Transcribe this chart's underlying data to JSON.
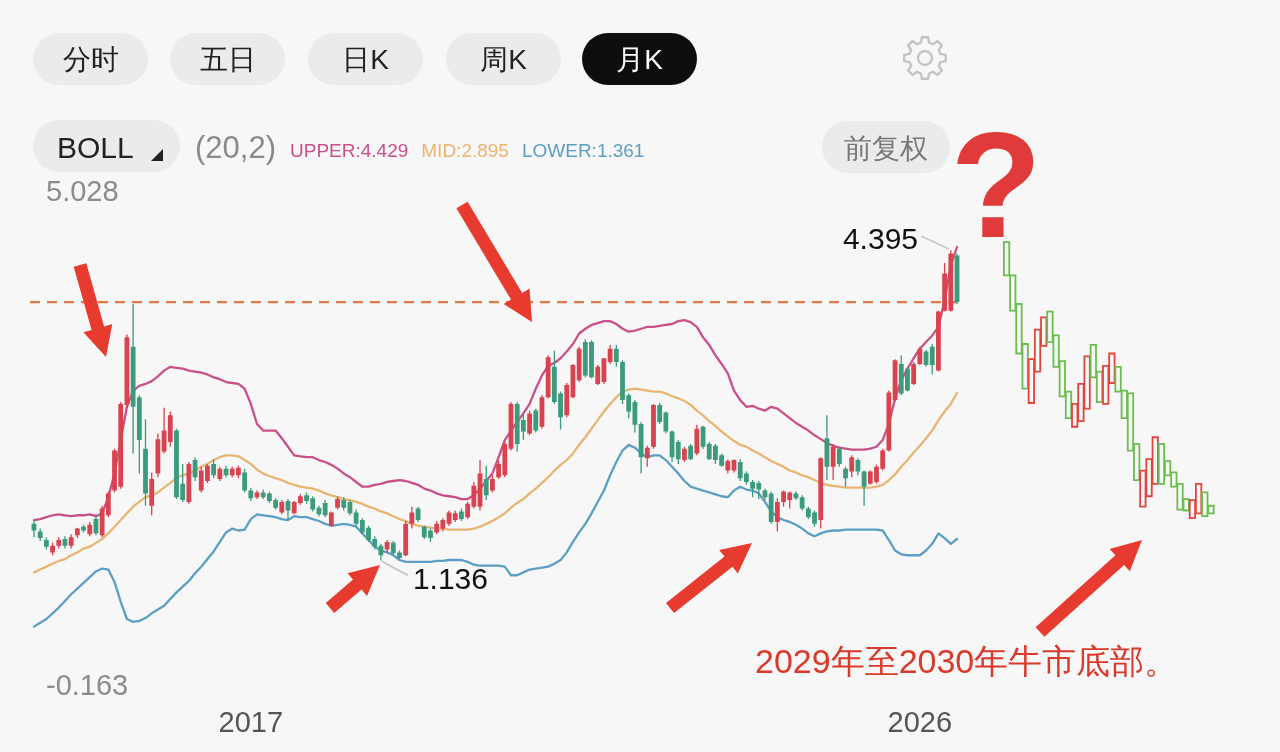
{
  "chart_data": {
    "type": "candlestick",
    "legend_title": "(20,2)",
    "legend": "top left",
    "annotations": [
      "分时",
      "五日",
      "日K",
      "周K",
      "月K",
      "BOLL",
      "前复权",
      "?",
      "2029年至2030年牛市底部。",
      "4.395",
      {
        "text": "1.136",
        "y": 1.136
      }
    ],
    "categories": [
      null,
      null,
      null,
      null,
      null,
      null,
      null,
      null,
      null,
      null,
      null,
      null,
      null,
      null,
      null,
      null,
      null,
      null,
      null,
      null,
      null,
      null,
      null,
      null,
      null,
      null,
      null,
      null,
      null,
      null,
      null,
      null,
      null,
      null,
      null,
      "2017",
      null,
      null,
      null,
      null,
      null,
      null,
      null,
      null,
      null,
      null,
      null,
      null,
      null,
      null,
      null,
      null,
      null,
      null,
      null,
      null,
      null,
      null,
      null,
      null,
      null,
      null,
      null,
      null,
      null,
      null,
      null,
      null,
      null,
      null,
      null,
      null,
      null,
      null,
      null,
      null,
      null,
      null,
      null,
      null,
      null,
      null,
      null,
      null,
      null,
      null,
      null,
      null,
      null,
      null,
      null,
      null,
      null,
      null,
      null,
      null,
      null,
      null,
      null,
      null,
      null,
      null,
      null,
      null,
      null,
      null,
      null,
      null,
      null,
      null,
      null,
      null,
      null,
      null,
      null,
      null,
      null,
      null,
      null,
      null,
      null,
      null,
      null,
      null,
      null,
      null,
      null,
      null,
      null,
      null,
      null,
      null,
      null,
      null,
      null,
      null,
      null,
      null,
      null,
      null,
      null,
      null,
      null,
      "2026",
      null,
      null,
      null,
      null,
      null,
      null,
      null,
      null,
      null,
      null,
      null,
      null,
      null,
      null,
      null,
      null,
      null,
      null,
      null,
      null,
      null,
      null,
      null,
      null,
      null,
      null,
      null,
      null,
      null,
      null,
      null,
      null,
      null,
      null,
      null,
      null,
      null,
      null,
      null,
      null,
      null,
      null,
      null,
      null,
      null,
      null,
      null
    ],
    "ohlc": [
      [
        1.52,
        1.56,
        1.38,
        1.45
      ],
      [
        1.44,
        1.47,
        1.34,
        1.37
      ],
      [
        1.35,
        1.38,
        1.25,
        1.28
      ],
      [
        1.22,
        1.32,
        1.19,
        1.29
      ],
      [
        1.29,
        1.38,
        1.26,
        1.35
      ],
      [
        1.36,
        1.39,
        1.26,
        1.29
      ],
      [
        1.29,
        1.41,
        1.26,
        1.38
      ],
      [
        1.4,
        1.48,
        1.37,
        1.47
      ],
      [
        1.49,
        1.51,
        1.43,
        1.45
      ],
      [
        1.41,
        1.54,
        1.39,
        1.51
      ],
      [
        1.57,
        1.62,
        1.4,
        1.42
      ],
      [
        1.4,
        1.71,
        1.38,
        1.68
      ],
      [
        1.61,
        1.86,
        1.59,
        1.84
      ],
      [
        1.87,
        2.31,
        1.85,
        2.29
      ],
      [
        1.91,
        2.8,
        1.89,
        2.78
      ],
      [
        2.77,
        3.51,
        2.74,
        3.48
      ],
      [
        3.38,
        3.83,
        2.26,
        2.75
      ],
      [
        2.85,
        2.87,
        2.05,
        2.4
      ],
      [
        2.31,
        2.62,
        1.71,
        1.84
      ],
      [
        1.71,
        2.06,
        1.61,
        1.99
      ],
      [
        2.05,
        2.47,
        2.01,
        2.41
      ],
      [
        2.28,
        2.74,
        2.26,
        2.5
      ],
      [
        2.38,
        2.7,
        2.33,
        2.66
      ],
      [
        2.5,
        2.52,
        1.78,
        1.8
      ],
      [
        1.94,
        2.15,
        1.75,
        1.77
      ],
      [
        1.75,
        2.17,
        1.73,
        2.15
      ],
      [
        2.19,
        2.22,
        1.97,
        2.01
      ],
      [
        1.87,
        2.12,
        1.85,
        2.08
      ],
      [
        1.97,
        2.15,
        1.95,
        2.13
      ],
      [
        2.15,
        2.2,
        2.0,
        2.03
      ],
      [
        1.99,
        2.12,
        1.97,
        2.1
      ],
      [
        2.1,
        2.13,
        2.01,
        2.03
      ],
      [
        2.03,
        2.12,
        2.01,
        2.1
      ],
      [
        2.03,
        2.13,
        2.0,
        2.11
      ],
      [
        2.06,
        2.1,
        1.85,
        1.87
      ],
      [
        1.87,
        1.9,
        1.76,
        1.79
      ],
      [
        1.8,
        1.87,
        1.78,
        1.85
      ],
      [
        1.85,
        1.88,
        1.78,
        1.8
      ],
      [
        1.84,
        1.86,
        1.74,
        1.76
      ],
      [
        1.77,
        1.79,
        1.67,
        1.69
      ],
      [
        1.64,
        1.77,
        1.62,
        1.75
      ],
      [
        1.76,
        1.78,
        1.56,
        1.66
      ],
      [
        1.63,
        1.76,
        1.62,
        1.75
      ],
      [
        1.74,
        1.83,
        1.72,
        1.81
      ],
      [
        1.82,
        1.85,
        1.73,
        1.76
      ],
      [
        1.79,
        1.81,
        1.65,
        1.67
      ],
      [
        1.69,
        1.71,
        1.6,
        1.62
      ],
      [
        1.74,
        1.77,
        1.59,
        1.61
      ],
      [
        1.5,
        1.65,
        1.49,
        1.64
      ],
      [
        1.69,
        1.81,
        1.67,
        1.78
      ],
      [
        1.77,
        1.8,
        1.66,
        1.69
      ],
      [
        1.75,
        1.77,
        1.61,
        1.63
      ],
      [
        1.64,
        1.67,
        1.49,
        1.52
      ],
      [
        1.56,
        1.58,
        1.41,
        1.43
      ],
      [
        1.48,
        1.5,
        1.33,
        1.35
      ],
      [
        1.36,
        1.39,
        1.25,
        1.28
      ],
      [
        1.29,
        1.31,
        1.136,
        1.19
      ],
      [
        1.25,
        1.35,
        1.22,
        1.33
      ],
      [
        1.32,
        1.34,
        1.19,
        1.21
      ],
      [
        1.22,
        1.24,
        1.15,
        1.16
      ],
      [
        1.19,
        1.55,
        1.18,
        1.52
      ],
      [
        1.52,
        1.7,
        1.47,
        1.64
      ],
      [
        1.68,
        1.7,
        1.54,
        1.56
      ],
      [
        1.49,
        1.5,
        1.36,
        1.38
      ],
      [
        1.45,
        1.47,
        1.33,
        1.37
      ],
      [
        1.43,
        1.55,
        1.41,
        1.52
      ],
      [
        1.47,
        1.58,
        1.44,
        1.56
      ],
      [
        1.52,
        1.66,
        1.5,
        1.64
      ],
      [
        1.56,
        1.66,
        1.54,
        1.63
      ],
      [
        1.65,
        1.68,
        1.55,
        1.57
      ],
      [
        1.59,
        1.75,
        1.57,
        1.73
      ],
      [
        1.7,
        1.96,
        1.68,
        1.92
      ],
      [
        1.7,
        2.19,
        1.66,
        2.05
      ],
      [
        1.99,
        2.13,
        1.77,
        1.82
      ],
      [
        1.87,
        2.03,
        1.85,
        1.99
      ],
      [
        2.01,
        2.18,
        1.99,
        2.15
      ],
      [
        2.03,
        2.38,
        2.01,
        2.36
      ],
      [
        2.31,
        2.8,
        2.29,
        2.78
      ],
      [
        2.78,
        2.8,
        2.28,
        2.36
      ],
      [
        2.61,
        2.68,
        2.4,
        2.49
      ],
      [
        2.47,
        2.71,
        2.45,
        2.68
      ],
      [
        2.71,
        2.73,
        2.48,
        2.5
      ],
      [
        2.54,
        2.87,
        2.52,
        2.85
      ],
      [
        2.85,
        3.29,
        2.84,
        3.27
      ],
      [
        3.17,
        3.34,
        2.78,
        2.8
      ],
      [
        2.89,
        2.91,
        2.51,
        2.64
      ],
      [
        2.66,
        3.0,
        2.64,
        2.98
      ],
      [
        2.85,
        3.2,
        2.84,
        3.19
      ],
      [
        3.03,
        3.38,
        3.01,
        3.36
      ],
      [
        3.43,
        3.46,
        3.06,
        3.08
      ],
      [
        3.43,
        3.45,
        3.05,
        3.06
      ],
      [
        2.99,
        3.19,
        2.98,
        3.17
      ],
      [
        3.01,
        3.26,
        2.99,
        3.26
      ],
      [
        3.22,
        3.4,
        3.2,
        3.36
      ],
      [
        3.36,
        3.4,
        3.17,
        3.22
      ],
      [
        3.22,
        3.24,
        2.78,
        2.82
      ],
      [
        2.87,
        2.89,
        2.63,
        2.7
      ],
      [
        2.8,
        2.82,
        2.48,
        2.56
      ],
      [
        2.57,
        2.59,
        2.05,
        2.22
      ],
      [
        2.21,
        2.34,
        2.12,
        2.32
      ],
      [
        2.33,
        2.78,
        2.31,
        2.77
      ],
      [
        2.77,
        2.79,
        2.57,
        2.59
      ],
      [
        2.69,
        2.7,
        2.47,
        2.49
      ],
      [
        2.49,
        2.5,
        2.17,
        2.22
      ],
      [
        2.38,
        2.4,
        2.15,
        2.2
      ],
      [
        2.19,
        2.33,
        2.17,
        2.31
      ],
      [
        2.34,
        2.36,
        2.19,
        2.2
      ],
      [
        2.26,
        2.56,
        2.24,
        2.52
      ],
      [
        2.54,
        2.55,
        2.31,
        2.33
      ],
      [
        2.36,
        2.38,
        2.19,
        2.2
      ],
      [
        2.34,
        2.36,
        2.15,
        2.19
      ],
      [
        2.24,
        2.26,
        2.12,
        2.13
      ],
      [
        2.08,
        2.2,
        2.05,
        2.18
      ],
      [
        2.08,
        2.2,
        2.06,
        2.19
      ],
      [
        2.17,
        2.2,
        1.97,
        2.0
      ],
      [
        2.05,
        2.07,
        1.93,
        1.96
      ],
      [
        1.96,
        1.98,
        1.8,
        1.89
      ],
      [
        1.95,
        1.97,
        1.78,
        1.88
      ],
      [
        1.87,
        1.89,
        1.77,
        1.8
      ],
      [
        1.84,
        1.86,
        1.52,
        1.54
      ],
      [
        1.54,
        1.79,
        1.44,
        1.75
      ],
      [
        1.75,
        1.87,
        1.7,
        1.86
      ],
      [
        1.77,
        1.86,
        1.68,
        1.85
      ],
      [
        1.84,
        1.86,
        1.77,
        1.79
      ],
      [
        1.8,
        1.82,
        1.66,
        1.68
      ],
      [
        1.68,
        1.7,
        1.57,
        1.59
      ],
      [
        1.64,
        1.66,
        1.49,
        1.52
      ],
      [
        1.56,
        2.22,
        1.47,
        2.21
      ],
      [
        2.42,
        2.66,
        1.98,
        2.12
      ],
      [
        2.12,
        2.36,
        1.98,
        2.33
      ],
      [
        2.31,
        2.33,
        2.12,
        2.15
      ],
      [
        2.1,
        2.12,
        1.91,
        2.0
      ],
      [
        2.07,
        2.24,
        2.01,
        2.22
      ],
      [
        2.19,
        2.21,
        2.03,
        2.07
      ],
      [
        2.07,
        2.08,
        1.71,
        1.91
      ],
      [
        1.94,
        2.08,
        1.93,
        2.07
      ],
      [
        1.96,
        2.14,
        1.94,
        2.12
      ],
      [
        2.1,
        2.31,
        2.08,
        2.29
      ],
      [
        2.29,
        2.92,
        2.28,
        2.9
      ],
      [
        2.82,
        3.25,
        2.8,
        3.24
      ],
      [
        3.2,
        3.29,
        2.87,
        2.89
      ],
      [
        3.15,
        3.17,
        2.91,
        2.92
      ],
      [
        2.99,
        3.22,
        2.98,
        3.2
      ],
      [
        3.2,
        3.38,
        3.19,
        3.36
      ],
      [
        3.33,
        3.35,
        3.17,
        3.19
      ],
      [
        3.38,
        3.41,
        3.09,
        3.19
      ],
      [
        3.13,
        3.76,
        3.12,
        3.75
      ],
      [
        3.76,
        4.26,
        3.75,
        4.15
      ],
      [
        3.76,
        4.395,
        3.75,
        4.36
      ],
      [
        4.34,
        4.36,
        3.83,
        3.85
      ],
      null,
      null,
      null,
      null,
      null,
      null,
      null,
      null,
      null,
      null,
      null,
      null,
      null,
      null,
      null,
      null,
      null,
      null,
      null,
      null,
      null,
      null,
      null,
      null,
      null,
      null,
      null,
      null,
      null,
      null,
      null,
      null,
      null,
      null,
      null,
      null,
      null,
      null,
      null,
      null,
      null
    ],
    "colors": [
      "#3b9b7c",
      "#3b9b7c",
      "#3b9b7c",
      "#d8434f",
      "#d8434f",
      "#3b9b7c",
      "#d8434f",
      "#d8434f",
      "#3b9b7c",
      "#d8434f",
      "#3b9b7c",
      "#d8434f",
      "#d8434f",
      "#d8434f",
      "#d8434f",
      "#d8434f",
      "#3b9b7c",
      "#3b9b7c",
      "#3b9b7c",
      "#d8434f",
      "#d8434f",
      "#d8434f",
      "#d8434f",
      "#3b9b7c",
      "#3b9b7c",
      "#d8434f",
      "#3b9b7c",
      "#d8434f",
      "#d8434f",
      "#3b9b7c",
      "#d8434f",
      "#3b9b7c",
      "#d8434f",
      "#d8434f",
      "#3b9b7c",
      "#3b9b7c",
      "#d8434f",
      "#3b9b7c",
      "#3b9b7c",
      "#3b9b7c",
      "#d8434f",
      "#3b9b7c",
      "#d8434f",
      "#d8434f",
      "#3b9b7c",
      "#3b9b7c",
      "#3b9b7c",
      "#3b9b7c",
      "#d8434f",
      "#d8434f",
      "#3b9b7c",
      "#3b9b7c",
      "#3b9b7c",
      "#3b9b7c",
      "#3b9b7c",
      "#3b9b7c",
      "#3b9b7c",
      "#d8434f",
      "#3b9b7c",
      "#3b9b7c",
      "#d8434f",
      "#d8434f",
      "#3b9b7c",
      "#3b9b7c",
      "#3b9b7c",
      "#d8434f",
      "#d8434f",
      "#d8434f",
      "#d8434f",
      "#3b9b7c",
      "#d8434f",
      "#d8434f",
      "#d8434f",
      "#3b9b7c",
      "#d8434f",
      "#d8434f",
      "#d8434f",
      "#d8434f",
      "#3b9b7c",
      "#3b9b7c",
      "#d8434f",
      "#3b9b7c",
      "#d8434f",
      "#d8434f",
      "#3b9b7c",
      "#3b9b7c",
      "#d8434f",
      "#d8434f",
      "#d8434f",
      "#3b9b7c",
      "#3b9b7c",
      "#d8434f",
      "#d8434f",
      "#d8434f",
      "#3b9b7c",
      "#3b9b7c",
      "#3b9b7c",
      "#3b9b7c",
      "#3b9b7c",
      "#d8434f",
      "#d8434f",
      "#3b9b7c",
      "#3b9b7c",
      "#3b9b7c",
      "#3b9b7c",
      "#d8434f",
      "#3b9b7c",
      "#d8434f",
      "#3b9b7c",
      "#3b9b7c",
      "#3b9b7c",
      "#3b9b7c",
      "#d8434f",
      "#d8434f",
      "#3b9b7c",
      "#3b9b7c",
      "#3b9b7c",
      "#3b9b7c",
      "#3b9b7c",
      "#3b9b7c",
      "#d8434f",
      "#d8434f",
      "#d8434f",
      "#3b9b7c",
      "#3b9b7c",
      "#3b9b7c",
      "#3b9b7c",
      "#d8434f",
      "#3b9b7c",
      "#d8434f",
      "#3b9b7c",
      "#3b9b7c",
      "#d8434f",
      "#3b9b7c",
      "#3b9b7c",
      "#d8434f",
      "#d8434f",
      "#d8434f",
      "#d8434f",
      "#d8434f",
      "#3b9b7c",
      "#3b9b7c",
      "#d8434f",
      "#d8434f",
      "#3b9b7c",
      "#3b9b7c",
      "#d8434f",
      "#d8434f",
      "#d8434f",
      "#3b9b7c",
      null,
      null,
      null,
      null,
      null,
      null,
      null,
      null,
      null,
      null,
      null,
      null,
      null,
      null,
      null,
      null,
      null,
      null,
      null,
      null,
      null,
      null,
      null,
      null,
      null,
      null,
      null,
      null,
      null,
      null,
      null,
      null,
      null,
      null,
      null,
      null,
      null,
      null,
      null,
      null,
      null
    ],
    "series": [
      {
        "type": "candlestick",
        "ohlc": [
          null,
          null,
          null,
          null,
          null,
          null,
          null,
          null,
          null,
          null,
          null,
          null,
          null,
          null,
          null,
          null,
          null,
          null,
          null,
          null,
          null,
          null,
          null,
          null,
          null,
          null,
          null,
          null,
          null,
          null,
          null,
          null,
          null,
          null,
          null,
          null,
          null,
          null,
          null,
          null,
          null,
          null,
          null,
          null,
          null,
          null,
          null,
          null,
          null,
          null,
          null,
          null,
          null,
          null,
          null,
          null,
          null,
          null,
          null,
          null,
          null,
          null,
          null,
          null,
          null,
          null,
          null,
          null,
          null,
          null,
          null,
          null,
          null,
          null,
          null,
          null,
          null,
          null,
          null,
          null,
          null,
          null,
          null,
          null,
          null,
          null,
          null,
          null,
          null,
          null,
          null,
          null,
          null,
          null,
          null,
          null,
          null,
          null,
          null,
          null,
          null,
          null,
          null,
          null,
          null,
          null,
          null,
          null,
          null,
          null,
          null,
          null,
          null,
          null,
          null,
          null,
          null,
          null,
          null,
          null,
          null,
          null,
          null,
          null,
          null,
          null,
          null,
          null,
          null,
          null,
          null,
          null,
          null,
          null,
          null,
          null,
          null,
          null,
          null,
          null,
          null,
          null,
          null,
          null,
          null,
          null,
          null,
          null,
          null,
          null,
          null,
          null,
          null,
          null,
          null,
          null,
          null,
          [
            4.48,
            4.48,
            4.13,
            4.13
          ],
          [
            4.13,
            4.13,
            3.76,
            3.76
          ],
          [
            3.83,
            3.83,
            3.31,
            3.31
          ],
          [
            3.41,
            3.41,
            2.94,
            2.94
          ],
          [
            2.79,
            3.25,
            2.79,
            3.25
          ],
          [
            3.12,
            3.56,
            3.12,
            3.56
          ],
          [
            3.39,
            3.69,
            3.39,
            3.69
          ],
          [
            3.75,
            3.75,
            3.43,
            3.43
          ],
          [
            3.5,
            3.5,
            3.17,
            3.17
          ],
          [
            3.23,
            3.23,
            2.86,
            2.86
          ],
          [
            2.91,
            2.91,
            2.63,
            2.63
          ],
          [
            2.54,
            2.78,
            2.54,
            2.78
          ],
          [
            2.6,
            2.99,
            2.6,
            2.99
          ],
          [
            2.73,
            3.28,
            2.73,
            3.28
          ],
          [
            3.4,
            3.4,
            3.06,
            3.06
          ],
          [
            3.12,
            3.12,
            2.8,
            2.8
          ],
          [
            2.78,
            3.18,
            2.78,
            3.18
          ],
          [
            3.0,
            3.31,
            3.0,
            3.31
          ],
          [
            3.17,
            3.17,
            2.91,
            2.91
          ],
          [
            2.92,
            2.92,
            2.63,
            2.63
          ],
          [
            2.89,
            2.89,
            2.29,
            2.29
          ],
          [
            2.36,
            2.36,
            1.98,
            1.98
          ],
          [
            1.7,
            2.08,
            1.7,
            2.08
          ],
          [
            1.81,
            2.2,
            1.81,
            2.2
          ],
          [
            1.94,
            2.43,
            1.94,
            2.43
          ],
          [
            2.36,
            2.36,
            1.94,
            1.94
          ],
          [
            2.18,
            2.18,
            2.03,
            2.03
          ],
          [
            2.06,
            2.06,
            1.91,
            1.91
          ],
          [
            1.94,
            1.94,
            1.67,
            1.67
          ],
          [
            1.78,
            1.78,
            1.66,
            1.66
          ],
          [
            1.58,
            1.77,
            1.58,
            1.77
          ],
          [
            1.63,
            1.94,
            1.63,
            1.94
          ],
          [
            1.85,
            1.85,
            1.6,
            1.6
          ],
          [
            1.71,
            1.71,
            1.63,
            1.63
          ]
        ],
        "colors": [
          null,
          null,
          null,
          null,
          null,
          null,
          null,
          null,
          null,
          null,
          null,
          null,
          null,
          null,
          null,
          null,
          null,
          null,
          null,
          null,
          null,
          null,
          null,
          null,
          null,
          null,
          null,
          null,
          null,
          null,
          null,
          null,
          null,
          null,
          null,
          null,
          null,
          null,
          null,
          null,
          null,
          null,
          null,
          null,
          null,
          null,
          null,
          null,
          null,
          null,
          null,
          null,
          null,
          null,
          null,
          null,
          null,
          null,
          null,
          null,
          null,
          null,
          null,
          null,
          null,
          null,
          null,
          null,
          null,
          null,
          null,
          null,
          null,
          null,
          null,
          null,
          null,
          null,
          null,
          null,
          null,
          null,
          null,
          null,
          null,
          null,
          null,
          null,
          null,
          null,
          null,
          null,
          null,
          null,
          null,
          null,
          null,
          null,
          null,
          null,
          null,
          null,
          null,
          null,
          null,
          null,
          null,
          null,
          null,
          null,
          null,
          null,
          null,
          null,
          null,
          null,
          null,
          null,
          null,
          null,
          null,
          null,
          null,
          null,
          null,
          null,
          null,
          null,
          null,
          null,
          null,
          null,
          null,
          null,
          null,
          null,
          null,
          null,
          null,
          null,
          null,
          null,
          null,
          null,
          null,
          null,
          null,
          null,
          null,
          null,
          null,
          null,
          null,
          null,
          null,
          null,
          null,
          "#6cbd4f",
          "#6cbd4f",
          "#6cbd4f",
          "#6cbd4f",
          "#e2453c",
          "#e2453c",
          "#e2453c",
          "#6cbd4f",
          "#6cbd4f",
          "#6cbd4f",
          "#6cbd4f",
          "#e2453c",
          "#e2453c",
          "#e2453c",
          "#6cbd4f",
          "#6cbd4f",
          "#e2453c",
          "#e2453c",
          "#6cbd4f",
          "#6cbd4f",
          "#6cbd4f",
          "#6cbd4f",
          "#e2453c",
          "#e2453c",
          "#e2453c",
          "#6cbd4f",
          "#6cbd4f",
          "#6cbd4f",
          "#6cbd4f",
          "#6cbd4f",
          "#e2453c",
          "#e2453c",
          "#6cbd4f",
          "#6cbd4f"
        ]
      },
      {
        "type": "line",
        "name": "UPPER:4.429",
        "color": "#c9508a",
        "values": [
          1.56,
          1.57,
          1.59,
          1.61,
          1.62,
          1.61,
          1.6,
          1.61,
          1.61,
          1.62,
          1.6,
          1.63,
          1.8,
          2.05,
          2.4,
          2.75,
          2.92,
          2.97,
          2.99,
          3.02,
          3.07,
          3.13,
          3.17,
          3.16,
          3.15,
          3.13,
          3.12,
          3.11,
          3.09,
          3.06,
          3.04,
          3.01,
          3.0,
          2.99,
          2.94,
          2.78,
          2.57,
          2.5,
          2.5,
          2.5,
          2.42,
          2.33,
          2.24,
          2.23,
          2.22,
          2.22,
          2.19,
          2.17,
          2.14,
          2.1,
          2.05,
          2.01,
          1.96,
          1.91,
          1.91,
          1.93,
          1.94,
          1.96,
          1.97,
          1.98,
          1.97,
          1.95,
          1.93,
          1.89,
          1.87,
          1.84,
          1.82,
          1.81,
          1.8,
          1.78,
          1.78,
          1.82,
          1.89,
          1.97,
          2.05,
          2.22,
          2.4,
          2.5,
          2.59,
          2.68,
          2.78,
          2.94,
          3.08,
          3.18,
          3.21,
          3.26,
          3.33,
          3.41,
          3.52,
          3.57,
          3.61,
          3.63,
          3.65,
          3.65,
          3.62,
          3.57,
          3.54,
          3.55,
          3.57,
          3.59,
          3.59,
          3.6,
          3.61,
          3.62,
          3.65,
          3.66,
          3.64,
          3.59,
          3.48,
          3.4,
          3.29,
          3.2,
          3.1,
          2.92,
          2.82,
          2.75,
          2.76,
          2.73,
          2.71,
          2.75,
          2.73,
          2.68,
          2.63,
          2.58,
          2.54,
          2.5,
          2.45,
          2.41,
          2.37,
          2.34,
          2.32,
          2.31,
          2.3,
          2.3,
          2.3,
          2.31,
          2.33,
          2.4,
          2.57,
          2.84,
          3.03,
          3.15,
          3.26,
          3.36,
          3.43,
          3.5,
          3.59,
          3.87,
          4.24,
          4.429,
          null,
          null,
          null,
          null,
          null,
          null,
          null,
          null,
          null,
          null,
          null,
          null,
          null,
          null,
          null,
          null,
          null,
          null,
          null,
          null,
          null,
          null,
          null,
          null,
          null,
          null,
          null,
          null,
          null,
          null,
          null,
          null,
          null,
          null,
          null,
          null,
          null,
          null,
          null,
          null,
          null
        ]
      },
      {
        "type": "line",
        "name": "MID:2.895",
        "color": "#e8b572",
        "values": [
          1.01,
          1.04,
          1.07,
          1.1,
          1.13,
          1.15,
          1.19,
          1.22,
          1.26,
          1.28,
          1.32,
          1.36,
          1.42,
          1.49,
          1.56,
          1.63,
          1.7,
          1.75,
          1.8,
          1.82,
          1.85,
          1.9,
          1.95,
          2.0,
          2.03,
          2.05,
          2.08,
          2.12,
          2.15,
          2.19,
          2.22,
          2.24,
          2.24,
          2.23,
          2.19,
          2.15,
          2.09,
          2.05,
          2.02,
          2.0,
          1.98,
          1.95,
          1.93,
          1.91,
          1.9,
          1.89,
          1.87,
          1.84,
          1.82,
          1.8,
          1.78,
          1.77,
          1.75,
          1.73,
          1.7,
          1.68,
          1.65,
          1.63,
          1.6,
          1.57,
          1.55,
          1.52,
          1.5,
          1.49,
          1.48,
          1.47,
          1.47,
          1.46,
          1.46,
          1.46,
          1.46,
          1.47,
          1.49,
          1.52,
          1.55,
          1.59,
          1.63,
          1.69,
          1.74,
          1.78,
          1.84,
          1.89,
          1.95,
          2.01,
          2.08,
          2.14,
          2.19,
          2.26,
          2.35,
          2.43,
          2.52,
          2.61,
          2.7,
          2.78,
          2.85,
          2.91,
          2.93,
          2.94,
          2.93,
          2.92,
          2.91,
          2.91,
          2.89,
          2.86,
          2.84,
          2.81,
          2.77,
          2.71,
          2.66,
          2.6,
          2.55,
          2.49,
          2.44,
          2.39,
          2.35,
          2.33,
          2.29,
          2.26,
          2.22,
          2.18,
          2.15,
          2.12,
          2.08,
          2.06,
          2.03,
          2.01,
          1.98,
          1.95,
          1.93,
          1.92,
          1.91,
          1.9,
          1.9,
          1.9,
          1.9,
          1.9,
          1.91,
          1.93,
          1.98,
          2.04,
          2.12,
          2.19,
          2.27,
          2.34,
          2.42,
          2.5,
          2.61,
          2.7,
          2.78,
          2.895,
          null,
          null,
          null,
          null,
          null,
          null,
          null,
          null,
          null,
          null,
          null,
          null,
          null,
          null,
          null,
          null,
          null,
          null,
          null,
          null,
          null,
          null,
          null,
          null,
          null,
          null,
          null,
          null,
          null,
          null,
          null,
          null,
          null,
          null,
          null,
          null,
          null,
          null,
          null,
          null,
          null
        ]
      },
      {
        "type": "line",
        "name": "LOWER:1.361",
        "color": "#5d9ec4",
        "values": [
          0.44,
          0.48,
          0.52,
          0.58,
          0.64,
          0.71,
          0.78,
          0.84,
          0.9,
          0.96,
          1.02,
          1.05,
          1.04,
          0.91,
          0.7,
          0.52,
          0.49,
          0.5,
          0.53,
          0.58,
          0.62,
          0.66,
          0.73,
          0.8,
          0.86,
          0.92,
          1.0,
          1.07,
          1.15,
          1.23,
          1.33,
          1.43,
          1.47,
          1.45,
          1.46,
          1.57,
          1.62,
          1.61,
          1.6,
          1.59,
          1.57,
          1.56,
          1.6,
          1.59,
          1.59,
          1.57,
          1.55,
          1.52,
          1.5,
          1.51,
          1.52,
          1.51,
          1.49,
          1.42,
          1.35,
          1.28,
          1.24,
          1.22,
          1.19,
          1.14,
          1.12,
          1.12,
          1.12,
          1.12,
          1.12,
          1.13,
          1.13,
          1.14,
          1.14,
          1.14,
          1.12,
          1.09,
          1.08,
          1.08,
          1.08,
          1.08,
          1.07,
          0.98,
          0.98,
          1.01,
          1.04,
          1.05,
          1.06,
          1.07,
          1.1,
          1.14,
          1.22,
          1.33,
          1.43,
          1.52,
          1.63,
          1.75,
          1.87,
          2.03,
          2.17,
          2.29,
          2.35,
          2.32,
          2.26,
          2.22,
          2.24,
          2.24,
          2.19,
          2.12,
          2.05,
          1.97,
          1.91,
          1.89,
          1.87,
          1.85,
          1.83,
          1.81,
          1.8,
          1.87,
          1.91,
          1.88,
          1.87,
          1.84,
          1.75,
          1.65,
          1.59,
          1.56,
          1.54,
          1.51,
          1.47,
          1.42,
          1.39,
          1.42,
          1.44,
          1.45,
          1.45,
          1.46,
          1.46,
          1.46,
          1.46,
          1.46,
          1.46,
          1.45,
          1.35,
          1.24,
          1.2,
          1.19,
          1.19,
          1.19,
          1.24,
          1.31,
          1.42,
          1.37,
          1.31,
          1.361,
          null,
          null,
          null,
          null,
          null,
          null,
          null,
          null,
          null,
          null,
          null,
          null,
          null,
          null,
          null,
          null,
          null,
          null,
          null,
          null,
          null,
          null,
          null,
          null,
          null,
          null,
          null,
          null,
          null,
          null,
          null,
          null,
          null,
          null,
          null,
          null,
          null,
          null,
          null,
          null,
          null
        ]
      }
    ],
    "ylim": [
      -0.163,
      5.028
    ],
    "yticks": [
      5.028,
      -0.163
    ],
    "ref_lines": [
      {
        "axis": "y",
        "value": 3.85,
        "color": "#e07a45",
        "line_style": "dashed"
      }
    ]
  }
}
